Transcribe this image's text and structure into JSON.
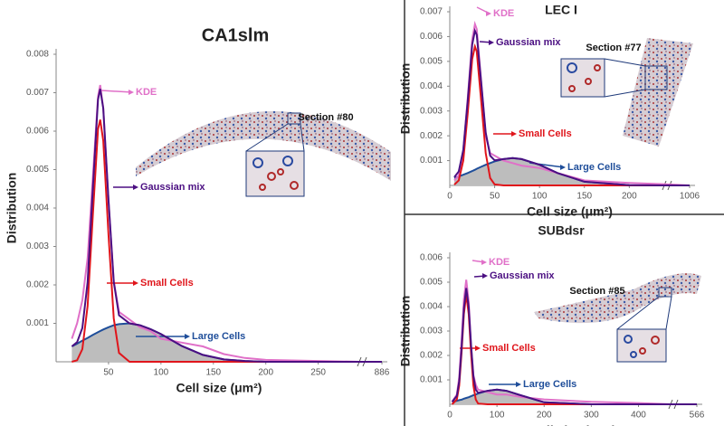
{
  "chart_data": [
    {
      "type": "line",
      "title": "CA1slm",
      "xlabel": "Cell size (μm²)",
      "ylabel": "Distribution",
      "section": "Section #80",
      "x": [
        15,
        20,
        25,
        30,
        35,
        40,
        42,
        45,
        50,
        55,
        60,
        70,
        80,
        90,
        100,
        120,
        140,
        160,
        180,
        200,
        250,
        290,
        886
      ],
      "xlim": [
        0,
        886
      ],
      "x_break": [
        290,
        860
      ],
      "xticks": [
        50,
        100,
        150,
        200,
        250,
        886
      ],
      "ylim": [
        0,
        0.008
      ],
      "yticks": [
        0.001,
        0.002,
        0.003,
        0.004,
        0.005,
        0.006,
        0.007,
        0.008
      ],
      "series": [
        {
          "name": "Large Cells",
          "color": "#1f4e9a",
          "fill": "#bdbdbd",
          "values": [
            0.0004,
            0.00047,
            0.00055,
            0.00062,
            0.0007,
            0.00077,
            0.0008,
            0.00084,
            0.0009,
            0.00095,
            0.00098,
            0.001,
            0.00095,
            0.00085,
            0.00072,
            0.00041,
            0.00018,
            6e-05,
            2e-05,
            0,
            0,
            0,
            0
          ]
        },
        {
          "name": "KDE",
          "color": "#e070c8",
          "values": [
            0.0006,
            0.001,
            0.0016,
            0.0027,
            0.0048,
            0.0069,
            0.0072,
            0.0066,
            0.0042,
            0.0021,
            0.0013,
            0.0011,
            0.0009,
            0.0008,
            0.0006,
            0.0005,
            0.0004,
            0.0002,
            0.0001,
            5e-05,
            2e-05,
            0,
            0
          ]
        },
        {
          "name": "Small Cells",
          "color": "#e0151b",
          "values": [
            0,
            4e-05,
            0.00033,
            0.00145,
            0.00382,
            0.00605,
            0.0063,
            0.00575,
            0.0033,
            0.00113,
            0.00023,
            0,
            0,
            0,
            0,
            0,
            0,
            0,
            0,
            0,
            0,
            0,
            0
          ]
        },
        {
          "name": "Gaussian mix",
          "color": "#4b0f82",
          "values": [
            0.0004,
            0.00051,
            0.00088,
            0.00207,
            0.00452,
            0.00682,
            0.0071,
            0.00659,
            0.0042,
            0.00208,
            0.00121,
            0.001,
            0.00095,
            0.00085,
            0.00072,
            0.00041,
            0.00018,
            6e-05,
            2e-05,
            0,
            0,
            0,
            0
          ]
        }
      ]
    },
    {
      "type": "line",
      "title": "LEC I",
      "xlabel": "Cell size (μm²)",
      "ylabel": "Distribution",
      "section": "Section #77",
      "x": [
        5,
        10,
        15,
        20,
        25,
        28,
        30,
        35,
        40,
        45,
        50,
        60,
        70,
        80,
        100,
        120,
        150,
        200,
        238,
        1006
      ],
      "xlim": [
        0,
        1006
      ],
      "x_break": [
        240,
        990
      ],
      "xticks": [
        0,
        50,
        100,
        150,
        200,
        1006
      ],
      "ylim": [
        0,
        0.007
      ],
      "yticks": [
        0.001,
        0.002,
        0.003,
        0.004,
        0.005,
        0.006,
        0.007
      ],
      "series": [
        {
          "name": "Large Cells",
          "color": "#1f4e9a",
          "fill": "#bdbdbd",
          "values": [
            0.0003,
            0.00036,
            0.00043,
            0.0005,
            0.00058,
            0.00063,
            0.00067,
            0.00075,
            0.00083,
            0.0009,
            0.00097,
            0.00106,
            0.0011,
            0.00106,
            0.00083,
            0.0005,
            0.00015,
            1e-05,
            0,
            0
          ]
        },
        {
          "name": "KDE",
          "color": "#e070c8",
          "values": [
            0.0002,
            0.0004,
            0.0014,
            0.0035,
            0.0059,
            0.0065,
            0.0063,
            0.0042,
            0.002,
            0.0013,
            0.0012,
            0.001,
            0.0009,
            0.0008,
            0.0007,
            0.0005,
            0.0002,
            0.0001,
            5e-05,
            0
          ]
        },
        {
          "name": "Small Cells",
          "color": "#e0151b",
          "values": [
            3e-05,
            0.0002,
            0.001,
            0.0029,
            0.0051,
            0.0056,
            0.0054,
            0.0034,
            0.0013,
            0.0003,
            4e-05,
            0,
            0,
            0,
            0,
            0,
            0,
            0,
            0,
            0
          ]
        },
        {
          "name": "Gaussian mix",
          "color": "#4b0f82",
          "values": [
            0.00033,
            0.00056,
            0.00143,
            0.0034,
            0.00568,
            0.00623,
            0.00607,
            0.00415,
            0.00213,
            0.0012,
            0.00101,
            0.00106,
            0.0011,
            0.00106,
            0.00083,
            0.0005,
            0.00015,
            1e-05,
            0,
            0
          ]
        }
      ]
    },
    {
      "type": "line",
      "title": "SUBdsr",
      "xlabel": "Cell size (μm²)",
      "ylabel": "Distribution",
      "section": "Section #85",
      "x": [
        5,
        15,
        20,
        25,
        30,
        35,
        40,
        45,
        50,
        55,
        60,
        80,
        100,
        120,
        150,
        200,
        300,
        400,
        470,
        566
      ],
      "xlim": [
        0,
        566
      ],
      "x_break": [
        470,
        550
      ],
      "xticks": [
        0,
        100,
        200,
        300,
        400,
        566
      ],
      "ylim": [
        0,
        0.006
      ],
      "yticks": [
        0.001,
        0.002,
        0.003,
        0.004,
        0.005,
        0.006
      ],
      "series": [
        {
          "name": "Large Cells",
          "color": "#1f4e9a",
          "fill": "#bdbdbd",
          "values": [
            0.0001,
            0.00014,
            0.00017,
            0.00019,
            0.00023,
            0.00026,
            0.00029,
            0.00033,
            0.00037,
            0.0004,
            0.00044,
            0.00055,
            0.0006,
            0.00055,
            0.00037,
            8e-05,
            0,
            0,
            0,
            0
          ]
        },
        {
          "name": "KDE",
          "color": "#e070c8",
          "values": [
            0.0001,
            0.0004,
            0.0011,
            0.0026,
            0.0043,
            0.0051,
            0.0042,
            0.0024,
            0.0012,
            0.0008,
            0.0006,
            0.0005,
            0.0004,
            0.0004,
            0.0003,
            0.0002,
            0.0001,
            5e-05,
            0,
            0
          ]
        },
        {
          "name": "Small Cells",
          "color": "#e0151b",
          "values": [
            0,
            0.0002,
            0.00077,
            0.0021,
            0.0037,
            0.0045,
            0.0037,
            0.0021,
            0.00077,
            0.0002,
            3e-05,
            0,
            0,
            0,
            0,
            0,
            0,
            0,
            0,
            0
          ]
        },
        {
          "name": "Gaussian mix",
          "color": "#4b0f82",
          "values": [
            0.0001,
            0.00034,
            0.00094,
            0.00229,
            0.00393,
            0.00476,
            0.00399,
            0.00243,
            0.00114,
            0.0006,
            0.00047,
            0.00055,
            0.0006,
            0.00055,
            0.00037,
            8e-05,
            0,
            0,
            0,
            0
          ]
        }
      ]
    }
  ]
}
